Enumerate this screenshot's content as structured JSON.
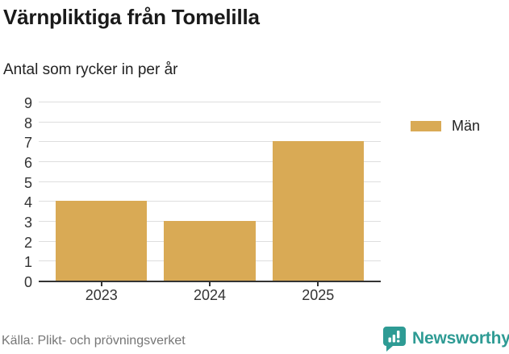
{
  "header": {
    "title": "Värnpliktiga från Tomelilla",
    "subtitle": "Antal som rycker in per år"
  },
  "legend": {
    "label": "Män",
    "color": "#d9aa55"
  },
  "footer": {
    "source": "Källa: Plikt- och prövningsverket"
  },
  "branding": {
    "name": "Newsworthy",
    "color": "#2e9b94",
    "icon": "chart-speech-bubble-icon"
  },
  "chart_data": {
    "type": "bar",
    "categories": [
      "2023",
      "2024",
      "2025"
    ],
    "series": [
      {
        "name": "Män",
        "color": "#d9aa55",
        "values": [
          4,
          3,
          7
        ]
      }
    ],
    "title": "Värnpliktiga från Tomelilla",
    "subtitle": "Antal som rycker in per år",
    "xlabel": "",
    "ylabel": "",
    "ylim": [
      0,
      9
    ],
    "yticks": [
      0,
      1,
      2,
      3,
      4,
      5,
      6,
      7,
      8,
      9
    ],
    "grid": true,
    "gridline_color": "#dedede",
    "axis_color": "#333333",
    "legend_position": "top-right"
  }
}
